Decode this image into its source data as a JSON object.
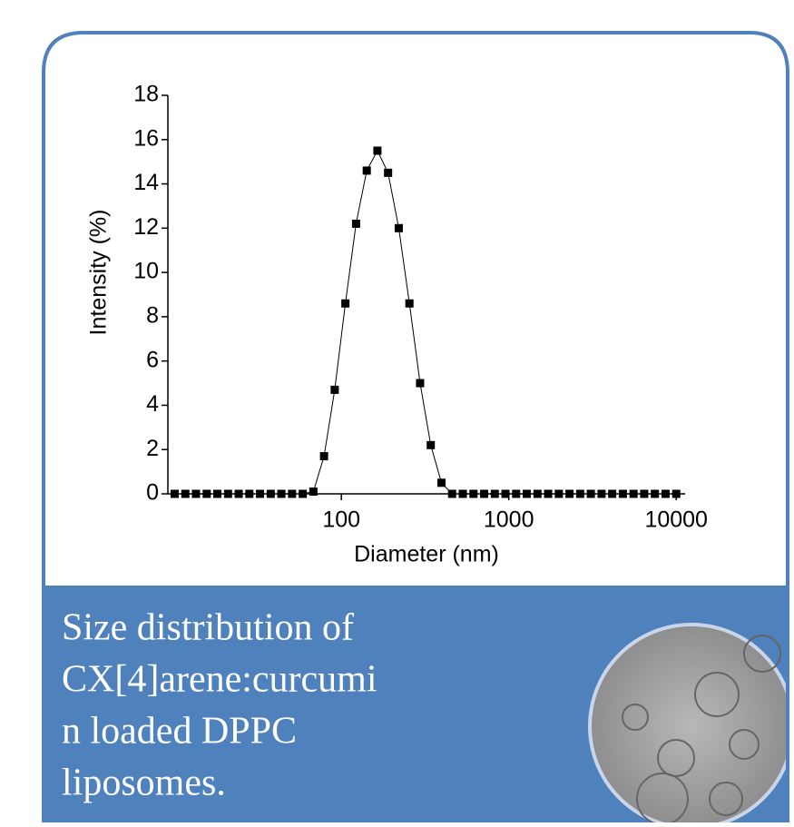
{
  "chart_data": {
    "type": "line",
    "x_label": "Diameter (nm)",
    "y_label": "Intensity (%)",
    "x": [
      10.1,
      11.7,
      13.54,
      15.69,
      18.17,
      21.04,
      24.36,
      28.21,
      32.67,
      37.84,
      43.82,
      50.75,
      58.77,
      68.06,
      78.82,
      91.28,
      105.7,
      122.4,
      141.8,
      164.2,
      190.1,
      220.2,
      255.0,
      295.3,
      342.0,
      396.1,
      458.7,
      531.2,
      615.1,
      712.4,
      825.0,
      955.4,
      1106,
      1281,
      1484,
      1718,
      1990,
      2305,
      2669,
      3091,
      3580,
      4145,
      4801,
      5560,
      6439,
      7456,
      8635,
      10000
    ],
    "series": [
      {
        "color": "#000000",
        "values": [
          0,
          0,
          0,
          0,
          0,
          0,
          0,
          0,
          0,
          0,
          0,
          0,
          0,
          0.1,
          1.7,
          4.7,
          8.6,
          12.2,
          14.6,
          15.5,
          14.5,
          12.0,
          8.6,
          5.0,
          2.2,
          0.5,
          0,
          0,
          0,
          0,
          0,
          0,
          0,
          0,
          0,
          0,
          0,
          0,
          0,
          0,
          0,
          0,
          0,
          0,
          0,
          0,
          0,
          0
        ]
      }
    ],
    "xscale": "log",
    "xlim": [
      9.2,
      11300
    ],
    "xticks": [
      100,
      1000,
      10000
    ],
    "ylim": [
      0,
      18
    ],
    "yticks": [
      0,
      2,
      4,
      6,
      8,
      10,
      12,
      14,
      16,
      18
    ]
  },
  "caption": {
    "lines": [
      "Size distribution of",
      "CX[4]arene:curcumi",
      "n loaded DPPC",
      "liposomes."
    ]
  }
}
